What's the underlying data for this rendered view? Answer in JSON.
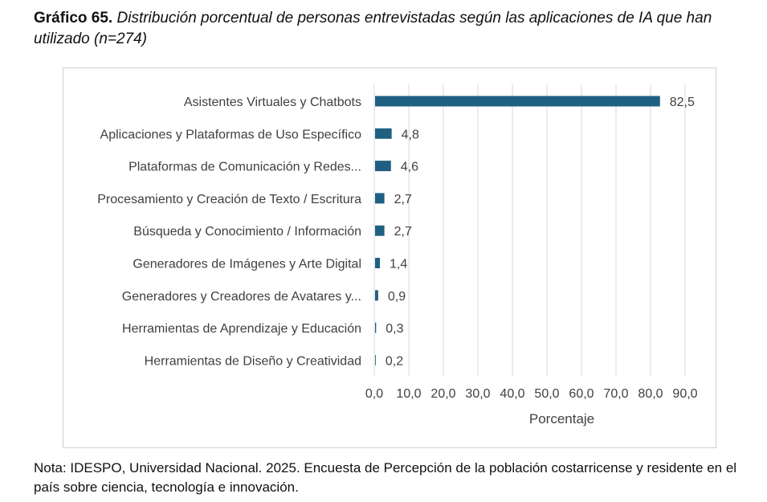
{
  "caption": {
    "label": "Gráfico  65.",
    "text": "Distribución porcentual de personas entrevistadas según las aplicaciones de IA que han utilizado (n=274)"
  },
  "note": "Nota: IDESPO, Universidad Nacional. 2025. Encuesta de Percepción de la población costarricense y residente en el país sobre ciencia, tecnología e innovación.",
  "colors": {
    "bar": "#1f5f82",
    "grid": "#d9d9d9",
    "text": "#404040"
  },
  "chart_data": {
    "type": "bar",
    "orientation": "horizontal",
    "categories": [
      "Asistentes Virtuales y Chatbots",
      "Aplicaciones y Plataformas de Uso Específico",
      "Plataformas de Comunicación y Redes...",
      "Procesamiento y Creación de Texto / Escritura",
      "Búsqueda y Conocimiento / Información",
      "Generadores de Imágenes y Arte Digital",
      "Generadores y Creadores de Avatares y...",
      "Herramientas de Aprendizaje y Educación",
      "Herramientas de Diseño y Creatividad"
    ],
    "values": [
      82.5,
      4.8,
      4.6,
      2.7,
      2.7,
      1.4,
      0.9,
      0.3,
      0.2
    ],
    "value_labels": [
      "82,5",
      "4,8",
      "4,6",
      "2,7",
      "2,7",
      "1,4",
      "0,9",
      "0,3",
      "0,2"
    ],
    "xlabel": "Porcentaje",
    "xlim": [
      0,
      90
    ],
    "xticks": [
      0,
      10,
      20,
      30,
      40,
      50,
      60,
      70,
      80,
      90
    ],
    "xtick_labels": [
      "0,0",
      "10,0",
      "20,0",
      "30,0",
      "40,0",
      "50,0",
      "60,0",
      "70,0",
      "80,0",
      "90,0"
    ],
    "grid": "vertical",
    "legend": "none"
  }
}
